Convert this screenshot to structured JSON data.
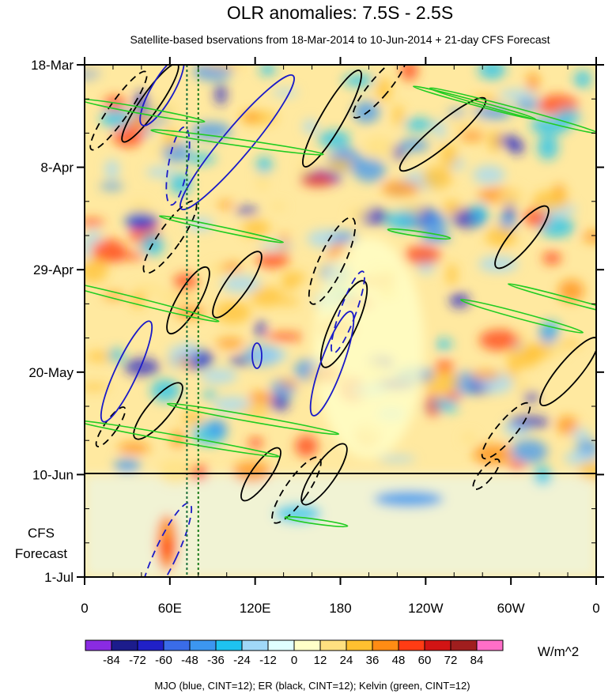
{
  "chart_data": {
    "type": "heatmap",
    "title": "OLR anomalies: 7.5S - 2.5S",
    "subtitle": "Satellite-based bservations from 18-Mar-2014 to 10-Jun-2014 + 21-day CFS Forecast",
    "x_ticks": [
      "0",
      "60E",
      "120E",
      "180",
      "120W",
      "60W",
      "0"
    ],
    "x_range_deg_east": [
      0,
      360
    ],
    "y_ticks": [
      "18-Mar",
      "8-Apr",
      "29-Apr",
      "20-May",
      "10-Jun",
      "1-Jul"
    ],
    "y_range_days": [
      0,
      105
    ],
    "observation_end_day": 84,
    "forecast_label_line1": "CFS",
    "forecast_label_line2": "Forecast",
    "colorbar": {
      "levels": [
        "-84",
        "-72",
        "-60",
        "-48",
        "-36",
        "-24",
        "-12",
        "0",
        "12",
        "24",
        "36",
        "48",
        "60",
        "72",
        "84"
      ],
      "colors": [
        "#8a2be2",
        "#1c1c8c",
        "#2020c8",
        "#3a6ce8",
        "#3c96f0",
        "#1ec2f0",
        "#a0d8f8",
        "#e0ffff",
        "#ffffc8",
        "#ffe080",
        "#ffc030",
        "#ff8c14",
        "#ff3c14",
        "#d21414",
        "#a01e1e",
        "#ff6ec8"
      ],
      "units": "W/m^2"
    },
    "contours_legend": "MJO (blue, CINT=12); ER (black, CINT=12); Kelvin (green, CINT=12)",
    "reference_longitudes_deg_east": [
      72,
      80
    ]
  }
}
